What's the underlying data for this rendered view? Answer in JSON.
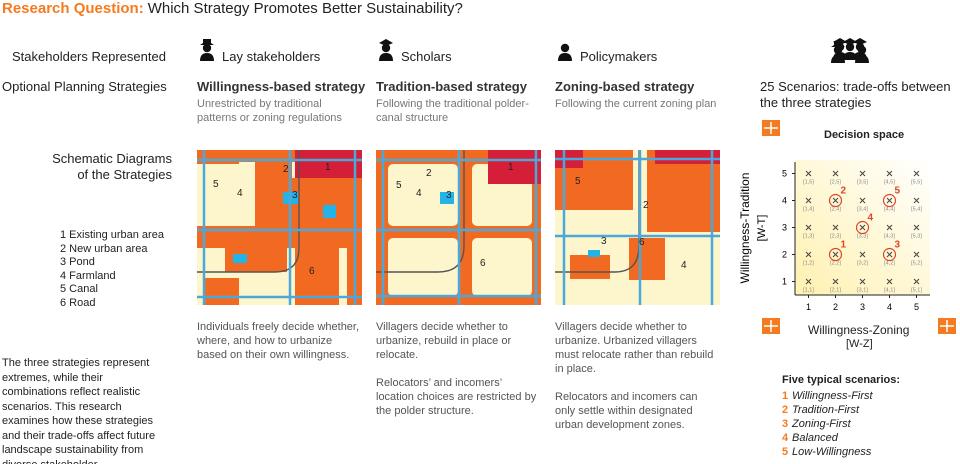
{
  "header": {
    "label": "Research Question:",
    "question": "Which Strategy Promotes Better Sustainability?"
  },
  "row_labels": {
    "stakeholders": "Stakeholders Represented",
    "strategies": "Optional Planning Strategies",
    "diagrams": [
      "Schematic Diagrams",
      "of the Strategies"
    ]
  },
  "legend": [
    "1 Existing urban area",
    "2 New urban area",
    "3 Pond",
    "4 Farmland",
    "5 Canal",
    "6 Road"
  ],
  "summary": "The three strategies represent extremes, while their combinations reflect realistic scenarios. This research examines how these strategies and their trade-offs affect future landscape sustainability from diverse stakeholder perspectives.",
  "columns": [
    {
      "stakeholder": "Lay stakeholders",
      "strategy": "Willingness-based strategy",
      "description": "Unrestricted by traditional patterns or zoning regulations",
      "map_labels": [
        1,
        2,
        3,
        4,
        5,
        6
      ],
      "notes": [
        "Individuals freely decide whether, where, and how to urbanize based on their own willingness."
      ]
    },
    {
      "stakeholder": "Scholars",
      "strategy": "Tradition-based strategy",
      "description": "Following the traditional polder-canal structure",
      "map_labels": [
        1,
        2,
        3,
        4,
        5,
        6
      ],
      "notes": [
        "Villagers decide whether to urbanize, rebuild in place or relocate.",
        "Relocators’ and incomers’ location choices are restricted by the polder structure."
      ]
    },
    {
      "stakeholder": "Policymakers",
      "strategy": "Zoning-based strategy",
      "description": "Following the current zoning plan",
      "map_labels": [
        2,
        3,
        4,
        5,
        6
      ],
      "notes": [
        "Villagers decide whether to urbanize. Urbanized villagers must relocate rather than rebuild in place.",
        "Relocators and incomers can only settle within designated urban development zones."
      ]
    }
  ],
  "decision_space": {
    "heading": [
      "25 Scenarios: trade-offs between",
      "the three strategies"
    ],
    "title": "Decision space",
    "x_label": "Willingness-Zoning",
    "x_code": "[W-Z]",
    "y_label": "Willingness-Tradition",
    "y_code": "[W-T]",
    "xlim": [
      0.5,
      5.5
    ],
    "ylim": [
      0.5,
      5.5
    ],
    "xticks": [
      1,
      2,
      3,
      4,
      5
    ],
    "yticks": [
      1,
      2,
      3,
      4,
      5
    ],
    "points": [
      {
        "x": 1,
        "y": 1,
        "label": "[1,1]"
      },
      {
        "x": 2,
        "y": 1,
        "label": "[2,1]"
      },
      {
        "x": 3,
        "y": 1,
        "label": "[3,1]"
      },
      {
        "x": 4,
        "y": 1,
        "label": "[4,1]"
      },
      {
        "x": 5,
        "y": 1,
        "label": "[5,1]"
      },
      {
        "x": 1,
        "y": 2,
        "label": "[1,2]"
      },
      {
        "x": 2,
        "y": 2,
        "label": "[2,2]"
      },
      {
        "x": 3,
        "y": 2,
        "label": "[3,2]"
      },
      {
        "x": 4,
        "y": 2,
        "label": "[4,2]"
      },
      {
        "x": 5,
        "y": 2,
        "label": "[5,2]"
      },
      {
        "x": 1,
        "y": 3,
        "label": "[1,3]"
      },
      {
        "x": 2,
        "y": 3,
        "label": "[2,3]"
      },
      {
        "x": 3,
        "y": 3,
        "label": "[3,3]"
      },
      {
        "x": 4,
        "y": 3,
        "label": "[4,3]"
      },
      {
        "x": 5,
        "y": 3,
        "label": "[5,3]"
      },
      {
        "x": 1,
        "y": 4,
        "label": "[1,4]"
      },
      {
        "x": 2,
        "y": 4,
        "label": "[2,4]"
      },
      {
        "x": 3,
        "y": 4,
        "label": "[3,4]"
      },
      {
        "x": 4,
        "y": 4,
        "label": "[4,4]"
      },
      {
        "x": 5,
        "y": 4,
        "label": "[5,4]"
      },
      {
        "x": 1,
        "y": 5,
        "label": "[1,5]"
      },
      {
        "x": 2,
        "y": 5,
        "label": "[2,5]"
      },
      {
        "x": 3,
        "y": 5,
        "label": "[3,5]"
      },
      {
        "x": 4,
        "y": 5,
        "label": "[4,5]"
      },
      {
        "x": 5,
        "y": 5,
        "label": "[5,5]"
      }
    ],
    "highlights": [
      {
        "number": 1,
        "x": 2,
        "y": 2
      },
      {
        "number": 2,
        "x": 2,
        "y": 4
      },
      {
        "number": 3,
        "x": 4,
        "y": 2
      },
      {
        "number": 4,
        "x": 3,
        "y": 3
      },
      {
        "number": 5,
        "x": 4,
        "y": 4
      }
    ],
    "typical_heading": "Five typical scenarios:",
    "typical": [
      {
        "number": 1,
        "name": "Willingness-First"
      },
      {
        "number": 2,
        "name": "Tradition-First"
      },
      {
        "number": 3,
        "name": "Zoning-First"
      },
      {
        "number": 4,
        "name": "Balanced"
      },
      {
        "number": 5,
        "name": "Low-Willingness"
      }
    ]
  }
}
